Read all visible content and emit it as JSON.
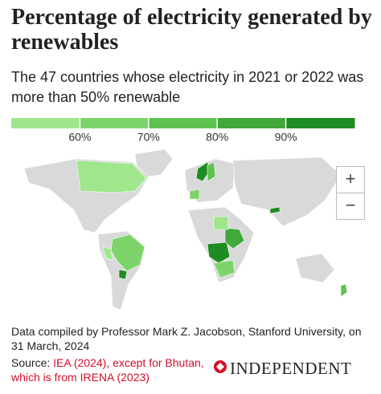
{
  "header": {
    "title": "Percentage of electricity generated by renewables",
    "subtitle": "The 47 countries whose electricity in 2021 or 2022 was more than 50% renewable"
  },
  "legend": {
    "colors": [
      "#9fe68c",
      "#7dd46b",
      "#5ec24f",
      "#42a83c",
      "#1f8c23"
    ],
    "ticks": [
      {
        "value": 60,
        "label": "60%"
      },
      {
        "value": 70,
        "label": "70%"
      },
      {
        "value": 80,
        "label": "80%"
      },
      {
        "value": 90,
        "label": "90%"
      }
    ]
  },
  "map": {
    "zoom_in": "+",
    "zoom_out": "−"
  },
  "footer": {
    "note": "Data compiled by Professor Mark Z. Jacobson, Stanford University, on 31 March, 2024",
    "source_prefix": "Source:",
    "source_link": "IEA (2024), except for Bhutan, which is from IRENA (2023)",
    "logo": "INDEPENDENT"
  }
}
